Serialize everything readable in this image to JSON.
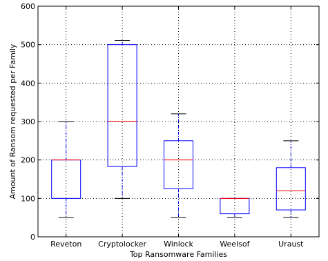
{
  "chart_data": {
    "type": "box",
    "title": "",
    "xlabel": "Top Ransomware Families",
    "ylabel": "Amount of Ransom requested per Family",
    "ylim": [
      0,
      600
    ],
    "yticks": [
      0,
      100,
      200,
      300,
      400,
      500,
      600
    ],
    "grid": true,
    "categories": [
      "Reveton",
      "Cryptolocker",
      "Winlock",
      "Weelsof",
      "Uraust"
    ],
    "boxes": [
      {
        "whisker_low": 50,
        "q1": 100,
        "median": 200,
        "q3": 200,
        "whisker_high": 300
      },
      {
        "whisker_low": 100,
        "q1": 183,
        "median": 301,
        "q3": 500,
        "whisker_high": 511
      },
      {
        "whisker_low": 50,
        "q1": 125,
        "median": 200,
        "q3": 250,
        "whisker_high": 320
      },
      {
        "whisker_low": 50,
        "q1": 60,
        "median": 100,
        "q3": 100,
        "whisker_high": 100
      },
      {
        "whisker_low": 50,
        "q1": 70,
        "median": 120,
        "q3": 180,
        "whisker_high": 250
      }
    ],
    "colors": {
      "box": "#0000ff",
      "median": "#ff0000",
      "whisker_cap": "#000000",
      "grid": "#000000"
    }
  }
}
